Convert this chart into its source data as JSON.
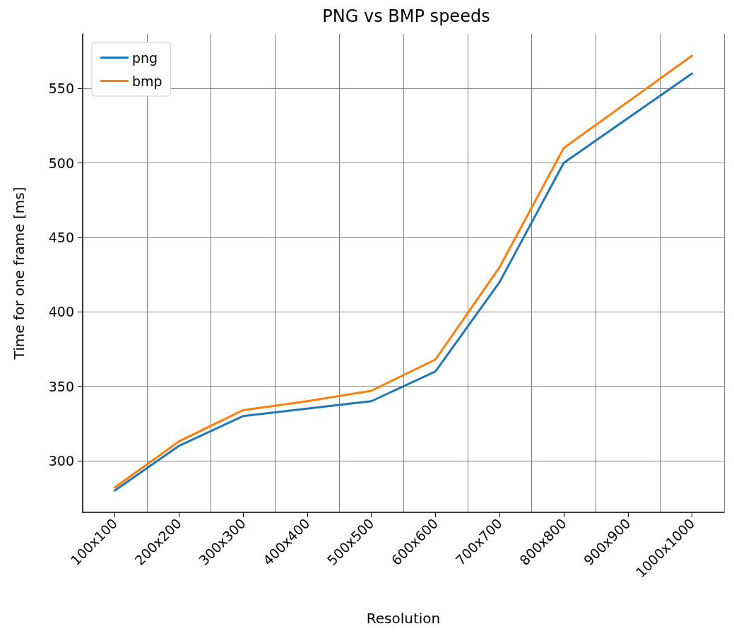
{
  "chart_data": {
    "type": "line",
    "title": "PNG vs BMP speeds",
    "xlabel": "Resolution",
    "ylabel": "Time for one frame [ms]",
    "categories": [
      "100x100",
      "200x200",
      "300x300",
      "400x400",
      "500x500",
      "600x600",
      "700x700",
      "800x800",
      "900x900",
      "1000x1000"
    ],
    "series": [
      {
        "name": "png",
        "color": "#1f77b4",
        "values": [
          280,
          310,
          330,
          335,
          340,
          360,
          420,
          500,
          530,
          560
        ]
      },
      {
        "name": "bmp",
        "color": "#ff7f0e",
        "values": [
          282,
          313,
          334,
          340,
          347,
          368,
          430,
          510,
          541,
          572
        ]
      }
    ],
    "ylim": [
      265.4,
      586.6
    ],
    "yticks": [
      300,
      350,
      400,
      450,
      500,
      550
    ],
    "grid": true,
    "legend": "top left",
    "marker": "none",
    "line_style": "solid"
  }
}
